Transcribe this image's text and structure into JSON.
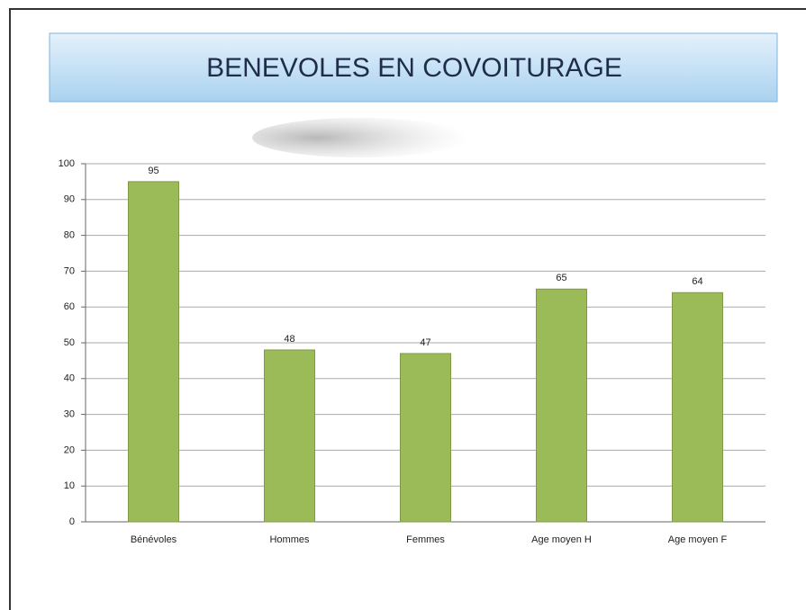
{
  "chart_data": {
    "type": "bar",
    "title": "BENEVOLES EN COVOITURAGE",
    "categories": [
      "Bénévoles",
      "Hommes",
      "Femmes",
      "Age moyen H",
      "Age moyen F"
    ],
    "values": [
      95,
      48,
      47,
      65,
      64
    ],
    "color": "#9bbb59",
    "ylim": [
      0,
      100
    ],
    "yticks": [
      0,
      10,
      20,
      30,
      40,
      50,
      60,
      70,
      80,
      90,
      100
    ],
    "grid": true
  }
}
